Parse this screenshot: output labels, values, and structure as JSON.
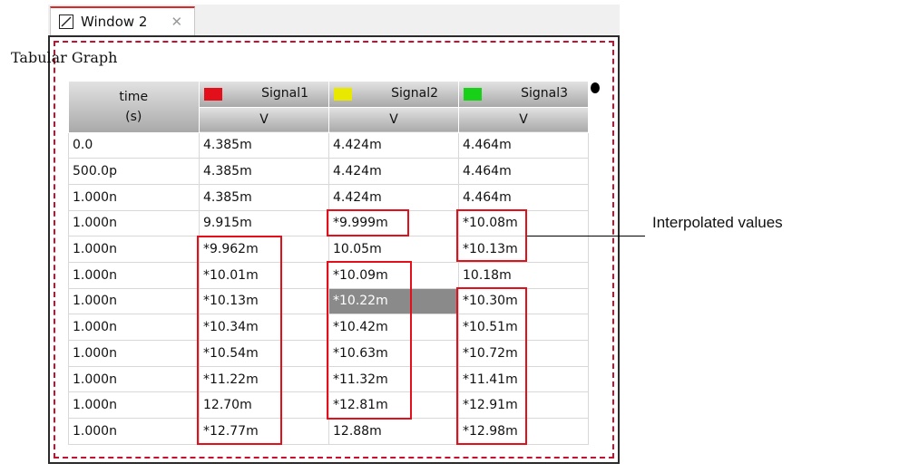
{
  "tab": {
    "label": "Window 2",
    "close_glyph": "✕",
    "icon": "graph-window-icon"
  },
  "graph": {
    "title": "Tabular Graph"
  },
  "columns": {
    "time": {
      "name": "time",
      "unit": "(s)"
    },
    "signals": [
      {
        "name": "Signal1",
        "unit": "V",
        "color": "#e3101b"
      },
      {
        "name": "Signal2",
        "unit": "V",
        "color": "#e8e800"
      },
      {
        "name": "Signal3",
        "unit": "V",
        "color": "#18d018"
      }
    ]
  },
  "rows": [
    [
      "0.0",
      "4.385m",
      "4.424m",
      "4.464m"
    ],
    [
      "500.0p",
      "4.385m",
      "4.424m",
      "4.464m"
    ],
    [
      "1.000n",
      "4.385m",
      "4.424m",
      "4.464m"
    ],
    [
      "1.000n",
      "9.915m",
      "*9.999m",
      "*10.08m"
    ],
    [
      "1.000n",
      "*9.962m",
      "10.05m",
      "*10.13m"
    ],
    [
      "1.000n",
      "*10.01m",
      "*10.09m",
      "10.18m"
    ],
    [
      "1.000n",
      "*10.13m",
      "*10.22m",
      "*10.30m"
    ],
    [
      "1.000n",
      "*10.34m",
      "*10.42m",
      "*10.51m"
    ],
    [
      "1.000n",
      "*10.54m",
      "*10.63m",
      "*10.72m"
    ],
    [
      "1.000n",
      "*11.22m",
      "*11.32m",
      "*11.41m"
    ],
    [
      "1.000n",
      "12.70m",
      "*12.81m",
      "*12.91m"
    ],
    [
      "1.000n",
      "*12.77m",
      "12.88m",
      "*12.98m"
    ]
  ],
  "selected_cell": {
    "row": 6,
    "column": 2
  },
  "annotation": {
    "label": "Interpolated values"
  }
}
